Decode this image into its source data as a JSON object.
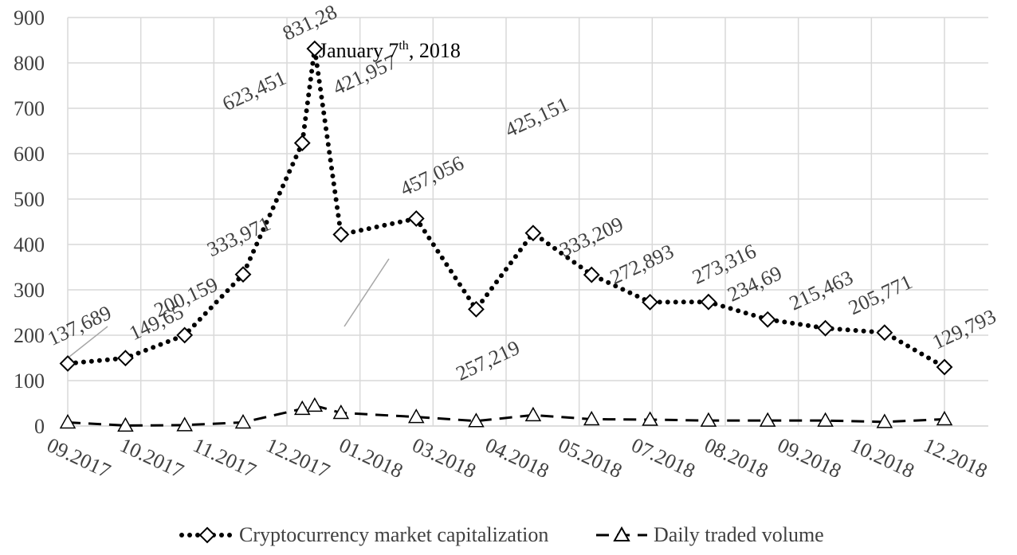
{
  "chart_data": {
    "type": "line",
    "xticks": [
      {
        "value": 0,
        "label": "09.2017"
      },
      {
        "value": 1,
        "label": "10.2017"
      },
      {
        "value": 2,
        "label": "11.2017"
      },
      {
        "value": 3,
        "label": "12.2017"
      },
      {
        "value": 4,
        "label": "01.2018"
      },
      {
        "value": 5,
        "label": "03.2018"
      },
      {
        "value": 6,
        "label": "04.2018"
      },
      {
        "value": 7,
        "label": "05.2018"
      },
      {
        "value": 8,
        "label": "07.2018"
      },
      {
        "value": 9,
        "label": "08.2018"
      },
      {
        "value": 10,
        "label": "09.2018"
      },
      {
        "value": 11,
        "label": "10.2018"
      },
      {
        "value": 12,
        "label": "12.2018"
      }
    ],
    "xlim": [
      0,
      12
    ],
    "ylim": [
      0,
      900
    ],
    "yticks": [
      0,
      100,
      200,
      300,
      400,
      500,
      600,
      700,
      800,
      900
    ],
    "grid": true,
    "legend": "bottom",
    "annotation": {
      "parts": [
        "January 7",
        "th",
        ", 2018"
      ]
    },
    "x": [
      0,
      0.79,
      1.6,
      2.4,
      3.21,
      3.38,
      3.74,
      4.77,
      5.59,
      6.37,
      7.17,
      7.97,
      8.77,
      9.58,
      10.37,
      11.18,
      12
    ],
    "series": [
      {
        "name": "Cryptocurrency market capitalization",
        "color": "#000000",
        "style": "dotted",
        "marker": "diamond",
        "values": [
          137.689,
          149.65,
          200.159,
          333.971,
          623.451,
          831.28,
          421.957,
          457.056,
          257.219,
          425.151,
          333.209,
          272.893,
          273.316,
          234.69,
          215.463,
          205.771,
          129.793
        ],
        "value_labels": [
          "137,689",
          "149,65",
          "200,159",
          "333,971",
          "623,451",
          "831,28",
          "421,957",
          "457,056",
          "257,219",
          "425,151",
          "333,209",
          "272,893",
          "273,316",
          "234,69",
          "215,463",
          "205,771",
          "129,793"
        ]
      },
      {
        "name": "Daily traded volume",
        "color": "#000000",
        "style": "dashed",
        "marker": "triangle",
        "values": [
          8,
          1,
          2,
          8,
          38,
          45,
          29,
          20,
          11,
          24,
          15,
          14,
          12,
          12,
          12,
          9,
          15
        ]
      }
    ]
  }
}
